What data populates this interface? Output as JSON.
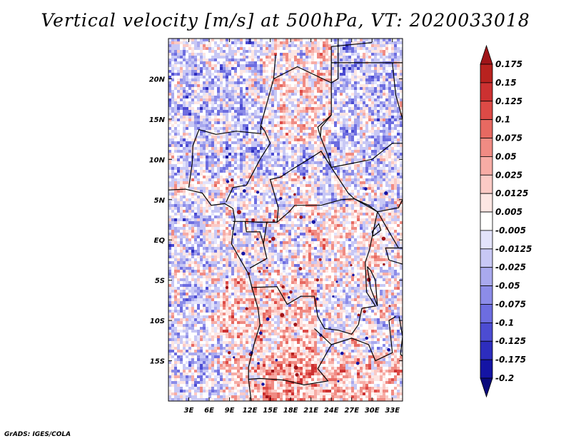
{
  "chart_data": {
    "type": "heatmap",
    "title": "Vertical velocity [m/s] at 500hPa, VT: 2020033018",
    "xlabel": "",
    "ylabel": "",
    "x_ticks": [
      "3E",
      "6E",
      "9E",
      "12E",
      "15E",
      "18E",
      "21E",
      "24E",
      "27E",
      "30E",
      "33E"
    ],
    "x_tick_values": [
      3,
      6,
      9,
      12,
      15,
      18,
      21,
      24,
      27,
      30,
      33
    ],
    "y_ticks": [
      "20N",
      "15N",
      "10N",
      "5N",
      "EQ",
      "5S",
      "10S",
      "15S"
    ],
    "y_tick_values": [
      20,
      15,
      10,
      5,
      0,
      -5,
      -10,
      -15
    ],
    "xlim": [
      0,
      34.5
    ],
    "ylim": [
      -20,
      25
    ],
    "colorbar": {
      "labels": [
        "0.175",
        "0.15",
        "0.125",
        "0.1",
        "0.075",
        "0.05",
        "0.025",
        "0.0125",
        "0.005",
        "-0.005",
        "-0.0125",
        "-0.025",
        "-0.05",
        "-0.075",
        "-0.1",
        "-0.125",
        "-0.175",
        "-0.2"
      ],
      "colors": [
        "#a01519",
        "#b8221f",
        "#cc3131",
        "#dd4a46",
        "#e76961",
        "#f08b83",
        "#f7aca5",
        "#fbcac5",
        "#fde6e3",
        "#ffffff",
        "#e3e3fb",
        "#c8c8f5",
        "#a9a9ee",
        "#8c8ce8",
        "#6d6de0",
        "#4c4cd2",
        "#2d2dbe",
        "#1414a4",
        "#0a0a7c"
      ]
    },
    "field_description": "Mostly weak vertical motion over central/southern Africa; blue (negative, ascent) dominating north and west, red (positive, subsidence) patches over south and northeast."
  },
  "credit": "GrADS: IGES/COLA"
}
